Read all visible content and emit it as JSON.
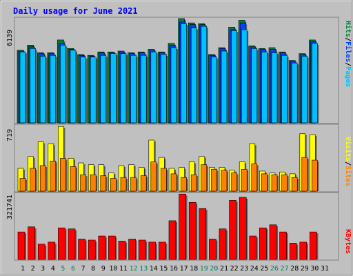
{
  "chart_data": [
    {
      "type": "bar",
      "title": "Daily usage for June 2021",
      "panel": "hits-files-pages",
      "ylabel_max": "6139",
      "legend": [
        "Pages",
        "Files",
        "Hits"
      ],
      "legend_colors": [
        "#00c0ff",
        "#0040ff",
        "#008040"
      ],
      "ylim": [
        0,
        6139
      ],
      "categories": [
        "1",
        "2",
        "3",
        "4",
        "5",
        "6",
        "7",
        "8",
        "9",
        "10",
        "11",
        "12",
        "13",
        "14",
        "15",
        "16",
        "17",
        "18",
        "19",
        "20",
        "21",
        "22",
        "23",
        "24",
        "25",
        "26",
        "27",
        "28",
        "29",
        "30",
        "31"
      ],
      "weekend_days": [
        "5",
        "6",
        "12",
        "13",
        "19",
        "20",
        "26",
        "27"
      ],
      "series": [
        {
          "name": "Hits",
          "values": [
            4250,
            4550,
            4100,
            4100,
            4850,
            4350,
            4000,
            3950,
            4150,
            4150,
            4200,
            4100,
            4150,
            4300,
            4150,
            4650,
            6100,
            5850,
            5800,
            4000,
            4400,
            5600,
            6000,
            4500,
            4350,
            4400,
            4150,
            3650,
            4050,
            4850,
            0
          ]
        },
        {
          "name": "Files",
          "values": [
            4200,
            4450,
            4050,
            4050,
            4650,
            4300,
            3950,
            3900,
            4100,
            4100,
            4150,
            4050,
            4100,
            4250,
            4100,
            4550,
            5900,
            5750,
            5750,
            3950,
            4350,
            5450,
            5850,
            4450,
            4300,
            4300,
            4100,
            3600,
            4000,
            4750,
            0
          ]
        },
        {
          "name": "Pages",
          "values": [
            4150,
            4350,
            3900,
            3950,
            4550,
            4250,
            3850,
            3850,
            3950,
            4050,
            4050,
            3950,
            3950,
            4150,
            4000,
            4400,
            5800,
            5550,
            5650,
            3850,
            4200,
            5400,
            5450,
            4350,
            4150,
            4100,
            3950,
            3500,
            3900,
            4650,
            0
          ]
        }
      ]
    },
    {
      "type": "bar",
      "panel": "visits-sites",
      "ylabel_max": "719",
      "legend": [
        "Sites",
        "Visits"
      ],
      "legend_colors": [
        "#ff8000",
        "#ffff00"
      ],
      "ylim": [
        0,
        719
      ],
      "categories": [
        "1",
        "2",
        "3",
        "4",
        "5",
        "6",
        "7",
        "8",
        "9",
        "10",
        "11",
        "12",
        "13",
        "14",
        "15",
        "16",
        "17",
        "18",
        "19",
        "20",
        "21",
        "22",
        "23",
        "24",
        "25",
        "26",
        "27",
        "28",
        "29",
        "30",
        "31"
      ],
      "series": [
        {
          "name": "Visits",
          "values": [
            250,
            380,
            540,
            520,
            710,
            360,
            310,
            290,
            290,
            200,
            280,
            290,
            260,
            560,
            370,
            250,
            260,
            320,
            380,
            260,
            260,
            230,
            320,
            520,
            220,
            200,
            210,
            190,
            630,
            620,
            0
          ]
        },
        {
          "name": "Sites",
          "values": [
            140,
            250,
            280,
            330,
            360,
            270,
            180,
            180,
            170,
            140,
            150,
            150,
            170,
            320,
            250,
            190,
            150,
            180,
            290,
            240,
            230,
            200,
            240,
            300,
            190,
            180,
            180,
            150,
            370,
            340,
            0
          ]
        }
      ]
    },
    {
      "type": "bar",
      "panel": "kbytes",
      "ylabel_max": "321741",
      "legend": [
        "KBytes"
      ],
      "legend_colors": [
        "#ff0000"
      ],
      "ylim": [
        0,
        321741
      ],
      "categories": [
        "1",
        "2",
        "3",
        "4",
        "5",
        "6",
        "7",
        "8",
        "9",
        "10",
        "11",
        "12",
        "13",
        "14",
        "15",
        "16",
        "17",
        "18",
        "19",
        "20",
        "21",
        "22",
        "23",
        "24",
        "25",
        "26",
        "27",
        "28",
        "29",
        "30",
        "31"
      ],
      "series": [
        {
          "name": "KBytes",
          "values": [
            135000,
            160000,
            75000,
            85000,
            155000,
            150000,
            100000,
            95000,
            115000,
            115000,
            90000,
            100000,
            95000,
            85000,
            85000,
            190000,
            321000,
            280000,
            250000,
            100000,
            150000,
            290000,
            305000,
            115000,
            155000,
            170000,
            135000,
            80000,
            85000,
            135000,
            0
          ]
        }
      ]
    }
  ],
  "colors": {
    "background": "#c0c0c0",
    "panel_bg": "#c0c0c0",
    "title": "#0000ff",
    "day_normal": "#000000",
    "day_weekend": "#00805c"
  }
}
